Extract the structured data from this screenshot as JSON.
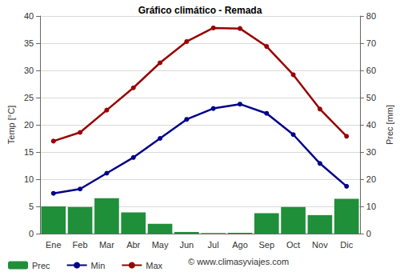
{
  "chart_data": {
    "type": "combo",
    "title": "Gráfico climático - Remada",
    "categories": [
      "Ene",
      "Feb",
      "Mar",
      "Abr",
      "May",
      "Jun",
      "Jul",
      "Ago",
      "Sep",
      "Oct",
      "Nov",
      "Dic"
    ],
    "series": [
      {
        "name": "Prec",
        "type": "bar",
        "axis": "y2",
        "color": "#1f8f3a",
        "values": [
          10,
          9.8,
          13,
          7.8,
          3.6,
          0.6,
          0.2,
          0.3,
          7.5,
          9.8,
          6.8,
          12.8
        ]
      },
      {
        "name": "Min",
        "type": "line",
        "color": "#00008b",
        "marker": "circle",
        "line_style": "solid",
        "values": [
          7.4,
          8.2,
          11.1,
          14,
          17.5,
          21,
          23,
          23.8,
          22.1,
          18.2,
          12.9,
          8.7
        ]
      },
      {
        "name": "Max",
        "type": "line",
        "color": "#990000",
        "marker": "circle",
        "line_style": "solid",
        "values": [
          17,
          18.6,
          22.7,
          26.8,
          31.4,
          35.3,
          37.8,
          37.7,
          34.4,
          29.2,
          22.9,
          17.9
        ]
      }
    ],
    "ylabel": "Temp [°C]",
    "y2label": "Prec [mm]",
    "ylim": [
      0,
      40
    ],
    "yticks": [
      0,
      5,
      10,
      15,
      20,
      25,
      30,
      35,
      40
    ],
    "y2lim": [
      0,
      80
    ],
    "y2ticks": [
      0,
      10,
      20,
      30,
      40,
      50,
      60,
      70,
      80
    ],
    "grid": true,
    "legend": "bottom-left",
    "annotations": [
      "© www.climasyviajes.com"
    ]
  }
}
